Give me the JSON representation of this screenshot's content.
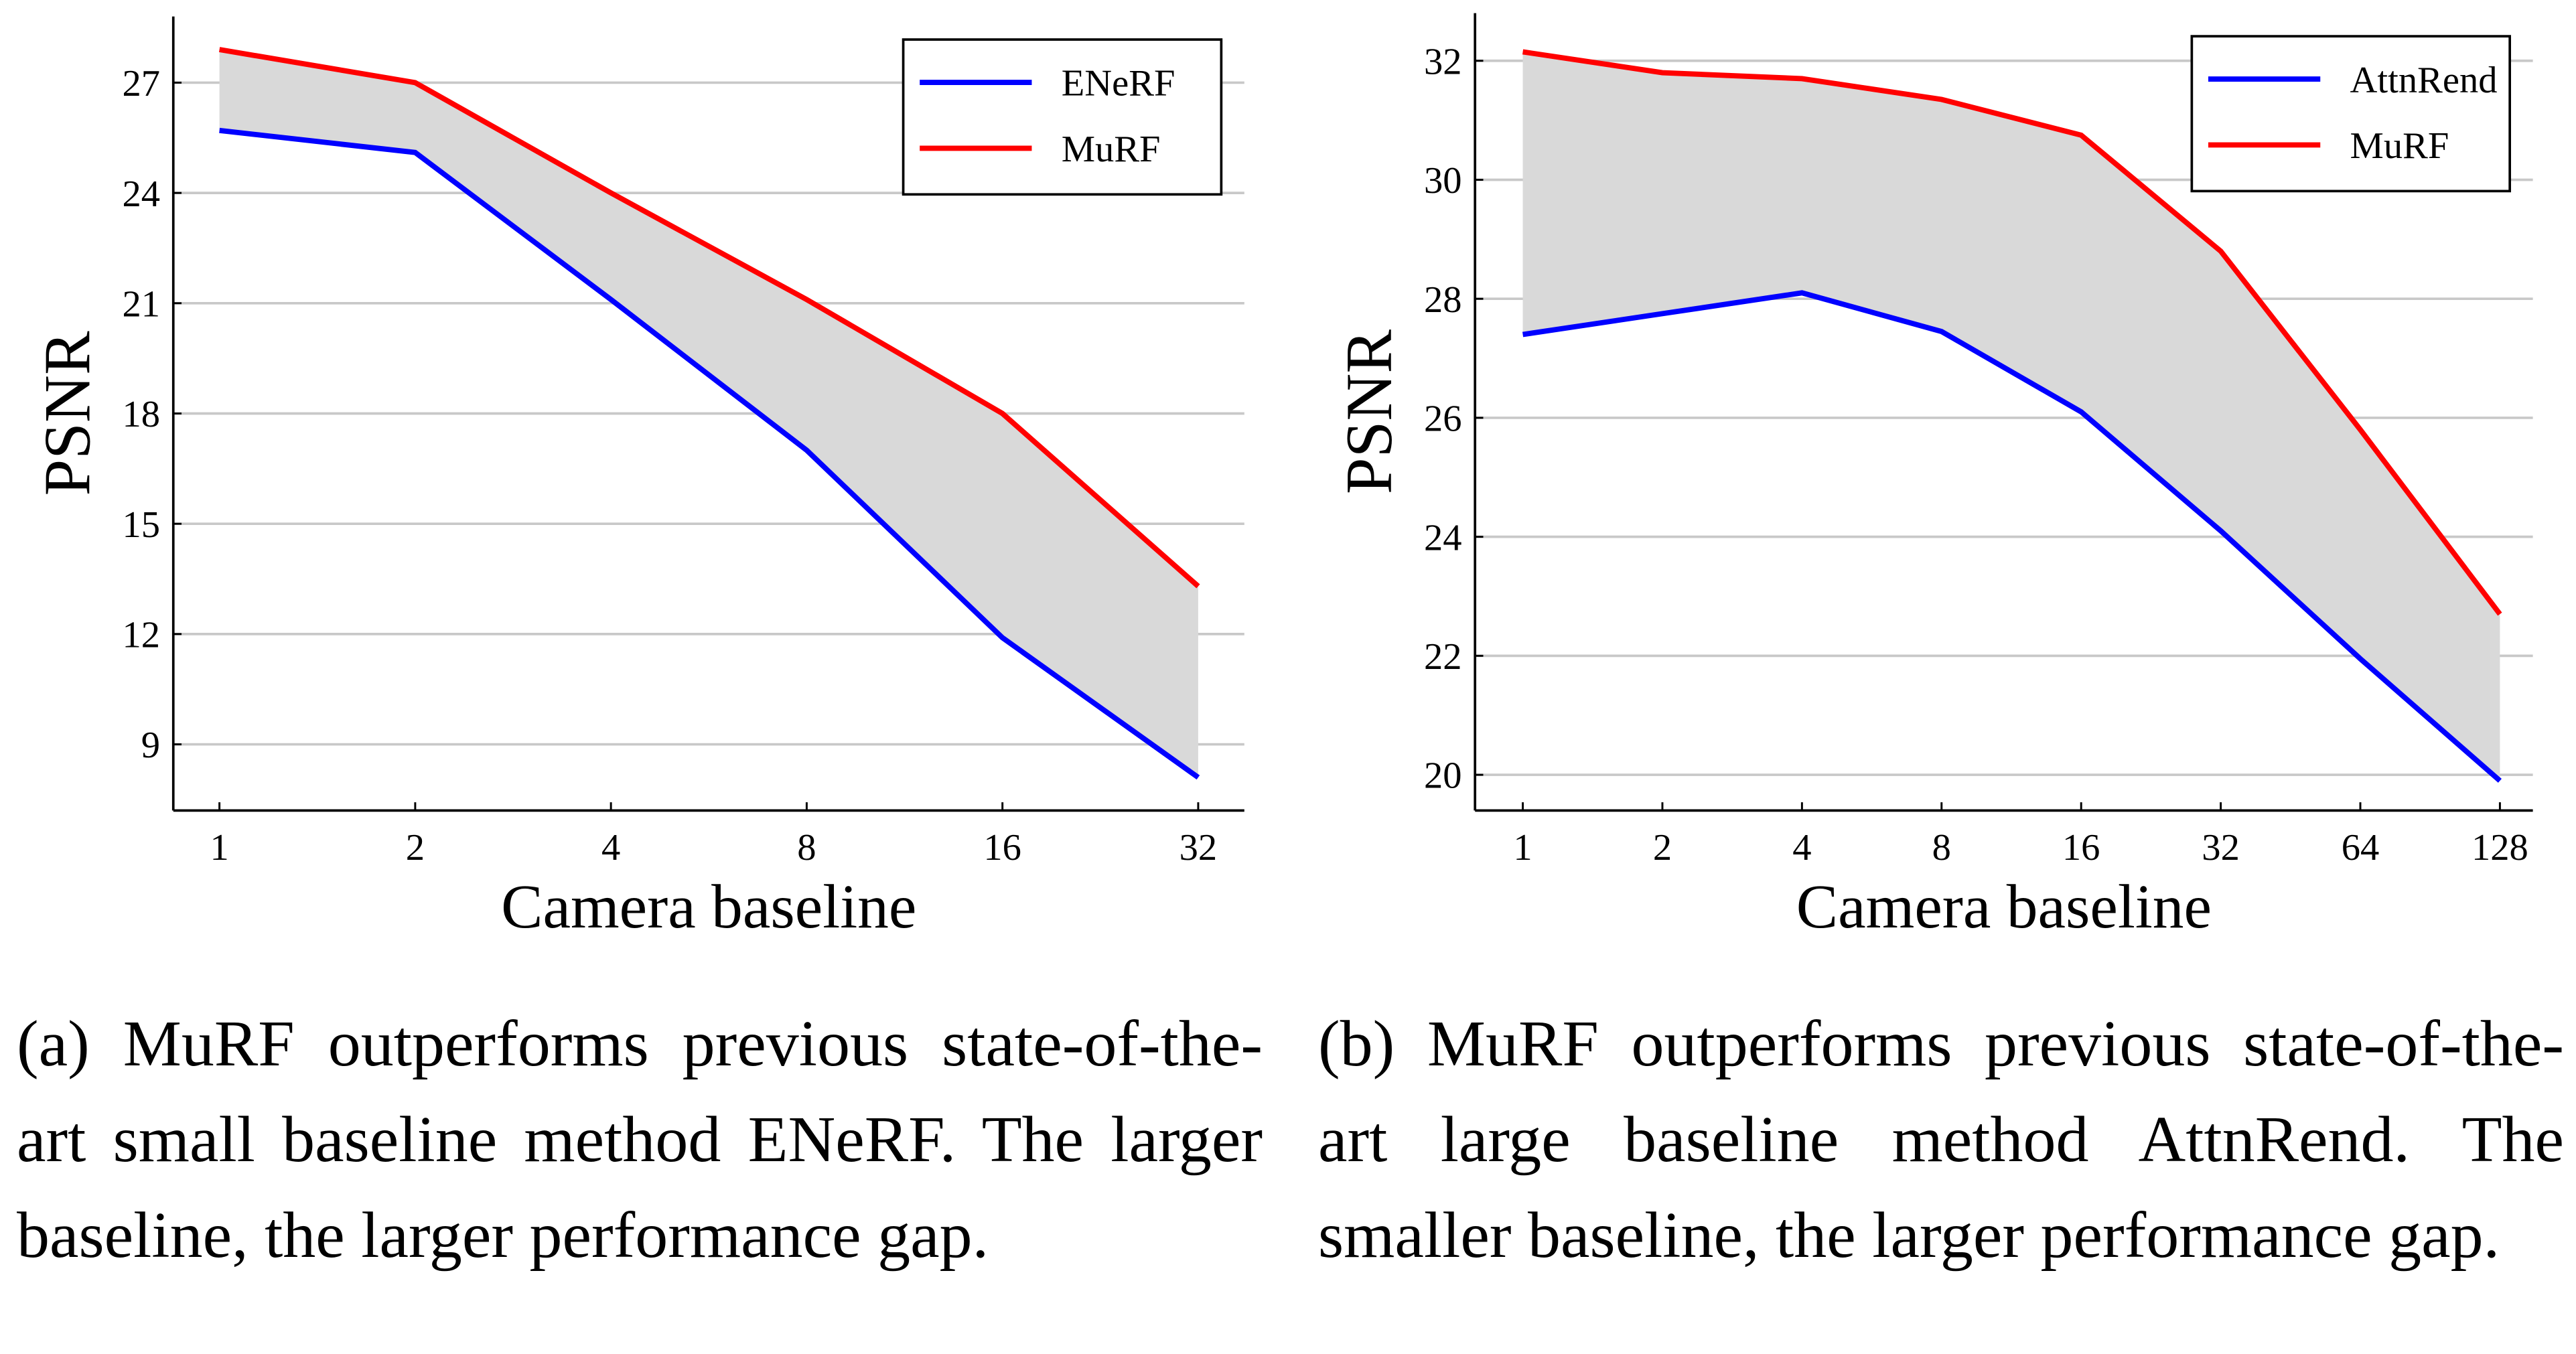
{
  "chart_data": [
    {
      "type": "line",
      "xlabel": "Camera baseline",
      "ylabel": "PSNR",
      "categories": [
        "1",
        "2",
        "4",
        "8",
        "16",
        "32"
      ],
      "series": [
        {
          "name": "ENeRF",
          "color": "#0000ff",
          "values": [
            25.7,
            25.1,
            21.1,
            17.0,
            11.9,
            8.1
          ]
        },
        {
          "name": "MuRF",
          "color": "#ff0000",
          "values": [
            27.9,
            27.0,
            24.0,
            21.1,
            18.0,
            13.3
          ]
        }
      ],
      "fill_between": true,
      "fill_color": "#d9d9d9",
      "ylim": [
        7.2,
        28.8
      ],
      "yticks": [
        9,
        12,
        15,
        18,
        21,
        24,
        27
      ],
      "grid": "y",
      "legend": "upper right",
      "caption": "(a) MuRF outperforms previous state-of-the-art small baseline method ENeRF. The larger baseline, the larger performance gap."
    },
    {
      "type": "line",
      "xlabel": "Camera baseline",
      "ylabel": "PSNR",
      "categories": [
        "1",
        "2",
        "4",
        "8",
        "16",
        "32",
        "64",
        "128"
      ],
      "series": [
        {
          "name": "AttnRend",
          "color": "#0000ff",
          "values": [
            27.4,
            27.75,
            28.1,
            27.45,
            26.1,
            24.1,
            21.95,
            19.9
          ]
        },
        {
          "name": "MuRF",
          "color": "#ff0000",
          "values": [
            32.15,
            31.8,
            31.7,
            31.35,
            30.75,
            28.8,
            25.8,
            22.7
          ]
        }
      ],
      "fill_between": true,
      "fill_color": "#d9d9d9",
      "ylim": [
        19.4,
        32.8
      ],
      "yticks": [
        20,
        22,
        24,
        26,
        28,
        30,
        32
      ],
      "grid": "y",
      "legend": "upper right",
      "caption": "(b) MuRF outperforms previous state-of-the-art large baseline method AttnRend. The smaller baseline, the larger performance gap."
    }
  ]
}
